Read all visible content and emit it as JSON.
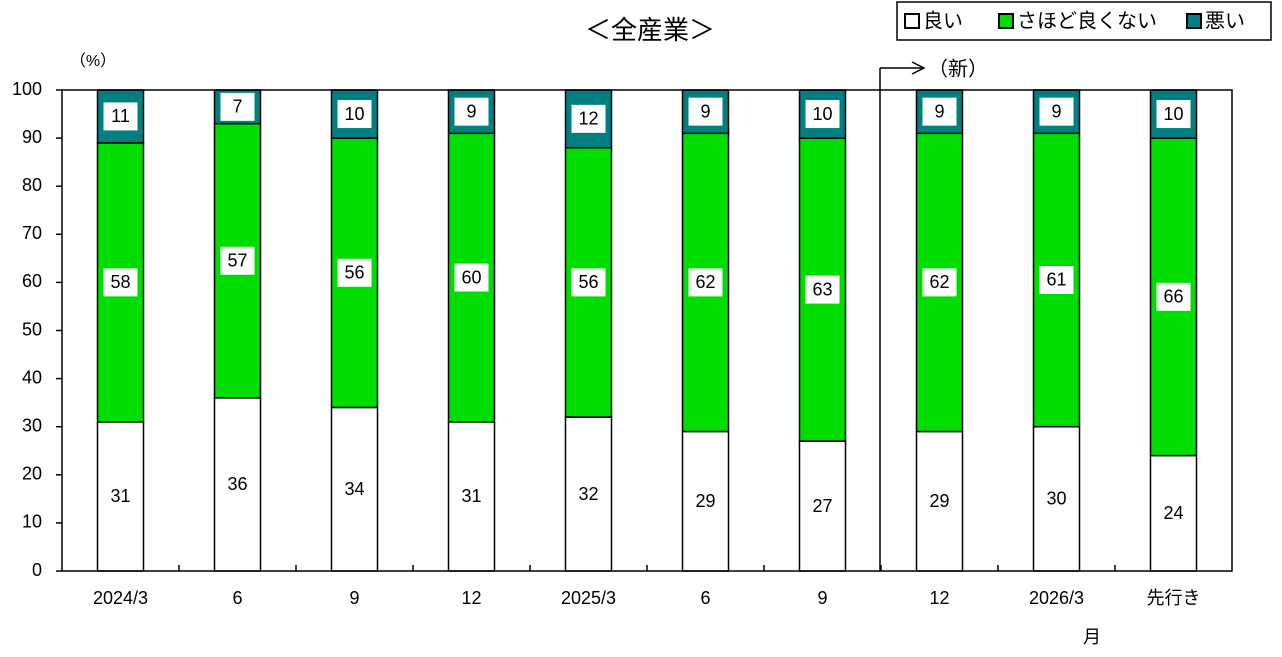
{
  "chart_data": {
    "type": "stacked_bar",
    "title": "＜全産業＞",
    "y_label": "（%）",
    "x_label": "月",
    "annotation": "（新）",
    "categories": [
      "2024/3",
      "6",
      "9",
      "12",
      "2025/3",
      "6",
      "9",
      "12",
      "2026/3",
      "先行き"
    ],
    "series": [
      {
        "name": "良い",
        "color": "#ffffff",
        "values": [
          31,
          36,
          34,
          31,
          32,
          29,
          27,
          29,
          30,
          24
        ]
      },
      {
        "name": "さほど良くない",
        "color": "#00dd00",
        "values": [
          58,
          57,
          56,
          60,
          56,
          62,
          63,
          62,
          61,
          66
        ]
      },
      {
        "name": "悪い",
        "color": "#007f80",
        "values": [
          11,
          7,
          10,
          9,
          12,
          9,
          10,
          9,
          9,
          10
        ]
      }
    ],
    "ylim": [
      0,
      100
    ],
    "yticks": [
      0,
      10,
      20,
      30,
      40,
      50,
      60,
      70,
      80,
      90,
      100
    ],
    "legend": "upper right"
  }
}
